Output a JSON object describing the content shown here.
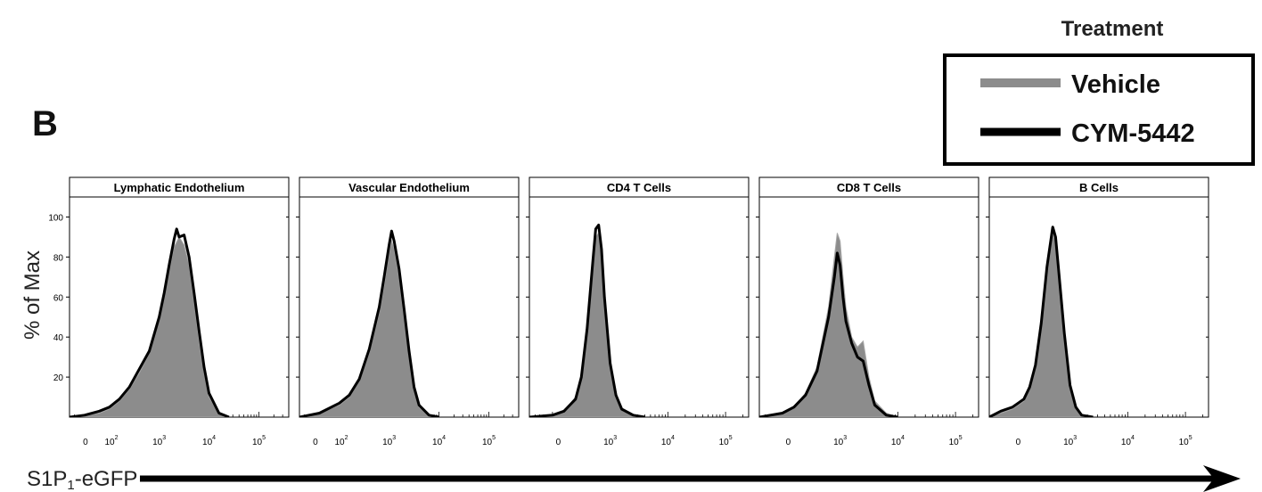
{
  "panel_letter": "B",
  "legend": {
    "title": "Treatment",
    "entries": [
      {
        "label": "Vehicle",
        "color": "#8c8c8c"
      },
      {
        "label": "CYM-5442",
        "color": "#000000"
      }
    ]
  },
  "colors": {
    "vehicle_fill": "#8c8c8c",
    "vehicle_edge": "#a6a6a6",
    "cym_line": "#000000",
    "arrow": "#000000"
  },
  "chart_data": {
    "type": "area",
    "ylabel": "% of Max",
    "xlabel": "S1P₁-eGFP",
    "xlabel_main": "S1P",
    "xlabel_sub": "1",
    "xlabel_suffix": "-eGFP",
    "ylim": [
      0,
      110
    ],
    "y_ticks": [
      20,
      40,
      60,
      80,
      100
    ],
    "x_scale": "biexponential (log10 of fluorescence)",
    "panels": [
      {
        "title": "Lymphatic Endothelium",
        "xlim": [
          1.2,
          5.6
        ],
        "x_ticks": [
          {
            "base": "0",
            "exp": ""
          },
          {
            "base": "10",
            "exp": "2"
          },
          {
            "base": "10",
            "exp": "3"
          },
          {
            "base": "10",
            "exp": "4"
          },
          {
            "base": "10",
            "exp": "5"
          }
        ],
        "x_tick_values": [
          1.52,
          2.04,
          3.0,
          4.0,
          5.0
        ],
        "series": [
          {
            "name": "Vehicle",
            "x": [
              1.2,
              1.5,
              1.8,
              2.0,
              2.2,
              2.4,
              2.6,
              2.8,
              3.0,
              3.1,
              3.2,
              3.3,
              3.4,
              3.5,
              3.6,
              3.7,
              3.8,
              3.9,
              4.0,
              4.2,
              4.4
            ],
            "y": [
              0,
              1,
              2,
              4,
              8,
              14,
              22,
              32,
              50,
              62,
              74,
              85,
              90,
              86,
              76,
              58,
              38,
              22,
              10,
              2,
              0
            ]
          },
          {
            "name": "CYM-5442",
            "x": [
              1.2,
              1.5,
              1.8,
              2.0,
              2.2,
              2.4,
              2.6,
              2.8,
              3.0,
              3.1,
              3.2,
              3.3,
              3.35,
              3.4,
              3.5,
              3.6,
              3.7,
              3.8,
              3.9,
              4.0,
              4.2,
              4.4
            ],
            "y": [
              0,
              1,
              3,
              5,
              9,
              15,
              24,
              33,
              50,
              62,
              76,
              89,
              94,
              90,
              91,
              80,
              62,
              43,
              25,
              12,
              2,
              0
            ]
          }
        ]
      },
      {
        "title": "Vascular Endothelium",
        "xlim": [
          1.2,
          5.6
        ],
        "x_ticks": [
          {
            "base": "0",
            "exp": ""
          },
          {
            "base": "10",
            "exp": "2"
          },
          {
            "base": "10",
            "exp": "3"
          },
          {
            "base": "10",
            "exp": "4"
          },
          {
            "base": "10",
            "exp": "5"
          }
        ],
        "x_tick_values": [
          1.52,
          2.04,
          3.0,
          4.0,
          5.0
        ],
        "series": [
          {
            "name": "Vehicle",
            "x": [
              1.2,
              1.6,
              2.0,
              2.2,
              2.4,
              2.6,
              2.8,
              2.9,
              3.0,
              3.05,
              3.1,
              3.2,
              3.3,
              3.4,
              3.5,
              3.6,
              3.8,
              4.0
            ],
            "y": [
              0,
              2,
              6,
              10,
              18,
              32,
              52,
              66,
              82,
              88,
              84,
              70,
              50,
              30,
              14,
              5,
              1,
              0
            ]
          },
          {
            "name": "CYM-5442",
            "x": [
              1.2,
              1.6,
              2.0,
              2.2,
              2.4,
              2.6,
              2.8,
              2.9,
              3.0,
              3.05,
              3.1,
              3.2,
              3.3,
              3.4,
              3.5,
              3.6,
              3.8,
              4.0
            ],
            "y": [
              0,
              2,
              7,
              11,
              19,
              34,
              55,
              70,
              86,
              93,
              88,
              74,
              54,
              33,
              15,
              6,
              1,
              0
            ]
          }
        ]
      },
      {
        "title": "CD4 T Cells",
        "xlim": [
          1.6,
          5.4
        ],
        "x_ticks": [
          {
            "base": "0",
            "exp": ""
          },
          {
            "base": "10",
            "exp": "3"
          },
          {
            "base": "10",
            "exp": "4"
          },
          {
            "base": "10",
            "exp": "5"
          }
        ],
        "x_tick_values": [
          2.1,
          3.0,
          4.0,
          5.0
        ],
        "series": [
          {
            "name": "Vehicle",
            "x": [
              1.6,
              2.0,
              2.2,
              2.4,
              2.5,
              2.6,
              2.7,
              2.75,
              2.8,
              2.85,
              2.9,
              3.0,
              3.1,
              3.2,
              3.4,
              3.6
            ],
            "y": [
              0,
              1,
              3,
              10,
              22,
              45,
              75,
              90,
              92,
              80,
              58,
              26,
              10,
              4,
              1,
              0
            ]
          },
          {
            "name": "CYM-5442",
            "x": [
              1.6,
              2.0,
              2.2,
              2.4,
              2.5,
              2.6,
              2.7,
              2.75,
              2.8,
              2.85,
              2.9,
              3.0,
              3.1,
              3.2,
              3.4,
              3.6
            ],
            "y": [
              0,
              1,
              3,
              9,
              20,
              44,
              78,
              94,
              96,
              84,
              60,
              27,
              11,
              4,
              1,
              0
            ]
          }
        ]
      },
      {
        "title": "CD8 T Cells",
        "xlim": [
          1.6,
          5.4
        ],
        "x_ticks": [
          {
            "base": "0",
            "exp": ""
          },
          {
            "base": "10",
            "exp": "3"
          },
          {
            "base": "10",
            "exp": "4"
          },
          {
            "base": "10",
            "exp": "5"
          }
        ],
        "x_tick_values": [
          2.1,
          3.0,
          4.0,
          5.0
        ],
        "series": [
          {
            "name": "Vehicle",
            "x": [
              1.6,
              2.0,
              2.2,
              2.4,
              2.6,
              2.8,
              2.9,
              2.95,
              3.0,
              3.05,
              3.1,
              3.2,
              3.3,
              3.4,
              3.5,
              3.6,
              3.8,
              4.0
            ],
            "y": [
              0,
              2,
              5,
              12,
              25,
              55,
              80,
              92,
              88,
              70,
              55,
              40,
              35,
              38,
              20,
              8,
              2,
              0
            ]
          },
          {
            "name": "CYM-5442",
            "x": [
              1.6,
              2.0,
              2.2,
              2.4,
              2.6,
              2.8,
              2.9,
              2.95,
              3.0,
              3.05,
              3.1,
              3.2,
              3.3,
              3.4,
              3.5,
              3.6,
              3.8,
              4.0
            ],
            "y": [
              0,
              2,
              5,
              11,
              23,
              50,
              70,
              82,
              76,
              60,
              48,
              37,
              30,
              28,
              16,
              6,
              1,
              0
            ]
          }
        ]
      },
      {
        "title": "B Cells",
        "xlim": [
          1.6,
          5.4
        ],
        "x_ticks": [
          {
            "base": "0",
            "exp": ""
          },
          {
            "base": "10",
            "exp": "3"
          },
          {
            "base": "10",
            "exp": "4"
          },
          {
            "base": "10",
            "exp": "5"
          }
        ],
        "x_tick_values": [
          2.1,
          3.0,
          4.0,
          5.0
        ],
        "series": [
          {
            "name": "Vehicle",
            "x": [
              1.6,
              1.8,
              2.0,
              2.2,
              2.3,
              2.4,
              2.5,
              2.6,
              2.7,
              2.75,
              2.8,
              2.9,
              3.0,
              3.1,
              3.2,
              3.4
            ],
            "y": [
              0,
              2,
              4,
              8,
              14,
              25,
              45,
              72,
              92,
              88,
              72,
              40,
              15,
              5,
              1,
              0
            ]
          },
          {
            "name": "CYM-5442",
            "x": [
              1.6,
              1.8,
              2.0,
              2.2,
              2.3,
              2.4,
              2.5,
              2.6,
              2.7,
              2.75,
              2.8,
              2.9,
              3.0,
              3.1,
              3.2,
              3.4
            ],
            "y": [
              0,
              3,
              5,
              9,
              15,
              26,
              47,
              75,
              95,
              90,
              74,
              42,
              16,
              5,
              1,
              0
            ]
          }
        ]
      }
    ]
  }
}
